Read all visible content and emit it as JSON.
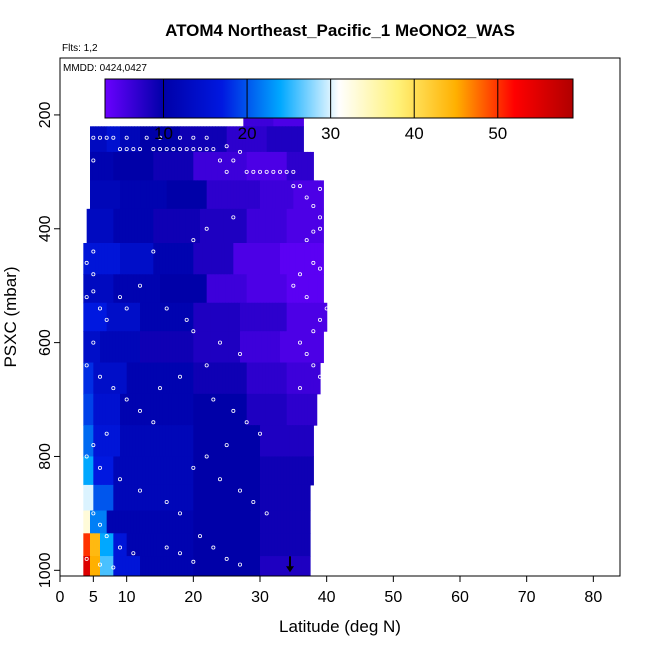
{
  "chart_data": {
    "type": "heatmap",
    "title": "ATOM4 Northeast_Pacific_1 MeONO2_WAS",
    "flights_label": "Flts: 1,2",
    "dates_label": "MMDD: 0424,0427",
    "xlabel": "Latitude (deg N)",
    "ylabel": "PSXC (mbar)",
    "xlim": [
      0,
      84
    ],
    "ylim": [
      1010,
      100
    ],
    "y_reversed": true,
    "x_ticks": [
      0,
      5,
      10,
      20,
      30,
      40,
      50,
      60,
      70,
      80
    ],
    "y_ticks": [
      200,
      400,
      600,
      800,
      1000
    ],
    "colorbar": {
      "range": [
        3,
        59
      ],
      "ticks": [
        10,
        20,
        30,
        40,
        50
      ],
      "colors": [
        "#6a00ff",
        "#0000a8",
        "#0018e0",
        "#00a8ff",
        "#ffffff",
        "#fff27a",
        "#ffb000",
        "#ff0000",
        "#b00000"
      ]
    },
    "rows": [
      {
        "p_top": 170,
        "p_bot": 220,
        "cells": [
          [
            27.5,
            32,
            6
          ],
          [
            32,
            36.5,
            5
          ]
        ]
      },
      {
        "p_top": 220,
        "p_bot": 265,
        "cells": [
          [
            4.5,
            7,
            13
          ],
          [
            7,
            9,
            15
          ],
          [
            9,
            12,
            12
          ],
          [
            12,
            18,
            10
          ],
          [
            18,
            25,
            9
          ],
          [
            25,
            31,
            7
          ],
          [
            31,
            36.5,
            8
          ]
        ]
      },
      {
        "p_top": 265,
        "p_bot": 315,
        "cells": [
          [
            4.5,
            8,
            11
          ],
          [
            8,
            14,
            10
          ],
          [
            14,
            20,
            9
          ],
          [
            20,
            28,
            6
          ],
          [
            28,
            34,
            5
          ],
          [
            34,
            38,
            7
          ]
        ]
      },
      {
        "p_top": 315,
        "p_bot": 365,
        "cells": [
          [
            4.5,
            9,
            12
          ],
          [
            9,
            16,
            11
          ],
          [
            16,
            22,
            10
          ],
          [
            22,
            30,
            7
          ],
          [
            30,
            35,
            6
          ],
          [
            35,
            39.5,
            5
          ]
        ]
      },
      {
        "p_top": 365,
        "p_bot": 425,
        "cells": [
          [
            4,
            8,
            13
          ],
          [
            8,
            14,
            11
          ],
          [
            14,
            21,
            9
          ],
          [
            21,
            28,
            8
          ],
          [
            28,
            34,
            6
          ],
          [
            34,
            39.5,
            5
          ]
        ]
      },
      {
        "p_top": 425,
        "p_bot": 480,
        "cells": [
          [
            3.5,
            9,
            16
          ],
          [
            9,
            14,
            14
          ],
          [
            14,
            20,
            11
          ],
          [
            20,
            26,
            8
          ],
          [
            26,
            33,
            5
          ],
          [
            33,
            39.5,
            4
          ]
        ]
      },
      {
        "p_top": 480,
        "p_bot": 530,
        "cells": [
          [
            3.5,
            8,
            13
          ],
          [
            8,
            15,
            11
          ],
          [
            15,
            22,
            10
          ],
          [
            22,
            28,
            6
          ],
          [
            28,
            34,
            5
          ],
          [
            34,
            39.5,
            4
          ]
        ]
      },
      {
        "p_top": 530,
        "p_bot": 580,
        "cells": [
          [
            3.5,
            7,
            17
          ],
          [
            7,
            12,
            14
          ],
          [
            12,
            20,
            11
          ],
          [
            20,
            27,
            8
          ],
          [
            27,
            34,
            7
          ],
          [
            34,
            40,
            5
          ]
        ]
      },
      {
        "p_top": 580,
        "p_bot": 635,
        "cells": [
          [
            3.5,
            6,
            14
          ],
          [
            6,
            12,
            12
          ],
          [
            12,
            20,
            9
          ],
          [
            20,
            27,
            8
          ],
          [
            27,
            33,
            6
          ],
          [
            33,
            39.5,
            5
          ]
        ]
      },
      {
        "p_top": 635,
        "p_bot": 690,
        "cells": [
          [
            3.5,
            5,
            18
          ],
          [
            5,
            10,
            14
          ],
          [
            10,
            20,
            11
          ],
          [
            20,
            28,
            9
          ],
          [
            28,
            34,
            7
          ],
          [
            34,
            39,
            6
          ]
        ]
      },
      {
        "p_top": 690,
        "p_bot": 745,
        "cells": [
          [
            3.5,
            5,
            19
          ],
          [
            5,
            9,
            15
          ],
          [
            9,
            20,
            11
          ],
          [
            20,
            28,
            10
          ],
          [
            28,
            34,
            8
          ],
          [
            34,
            38.5,
            7
          ]
        ]
      },
      {
        "p_top": 745,
        "p_bot": 800,
        "cells": [
          [
            3.5,
            5,
            21
          ],
          [
            5,
            9,
            16
          ],
          [
            9,
            20,
            12
          ],
          [
            20,
            30,
            10
          ],
          [
            30,
            38,
            8
          ]
        ]
      },
      {
        "p_top": 800,
        "p_bot": 850,
        "cells": [
          [
            3.5,
            5,
            24
          ],
          [
            5,
            8,
            17
          ],
          [
            8,
            20,
            12
          ],
          [
            20,
            30,
            10
          ],
          [
            30,
            38,
            9
          ]
        ]
      },
      {
        "p_top": 850,
        "p_bot": 895,
        "cells": [
          [
            3.5,
            5,
            30
          ],
          [
            5,
            8,
            20
          ],
          [
            8,
            20,
            12
          ],
          [
            20,
            30,
            10
          ],
          [
            30,
            37.5,
            9
          ]
        ]
      },
      {
        "p_top": 895,
        "p_bot": 935,
        "cells": [
          [
            3.5,
            4.5,
            33
          ],
          [
            4.5,
            7,
            22
          ],
          [
            7,
            20,
            11
          ],
          [
            20,
            30,
            10
          ],
          [
            30,
            37.5,
            9
          ]
        ]
      },
      {
        "p_top": 935,
        "p_bot": 975,
        "cells": [
          [
            3.5,
            4.5,
            50
          ],
          [
            4.5,
            6,
            44
          ],
          [
            6,
            8,
            24
          ],
          [
            8,
            10,
            16
          ],
          [
            10,
            20,
            11
          ],
          [
            20,
            30,
            10
          ],
          [
            30,
            37.5,
            9
          ]
        ]
      },
      {
        "p_top": 975,
        "p_bot": 1010,
        "cells": [
          [
            3.5,
            4.5,
            55
          ],
          [
            4.5,
            6,
            45
          ],
          [
            6,
            8,
            26
          ],
          [
            8,
            12,
            16
          ],
          [
            12,
            20,
            11
          ],
          [
            20,
            30,
            10
          ],
          [
            30,
            37.5,
            8
          ]
        ]
      }
    ],
    "points": [
      [
        28,
        200
      ],
      [
        29,
        200
      ],
      [
        30,
        200
      ],
      [
        31,
        200
      ],
      [
        32,
        200
      ],
      [
        33,
        200
      ],
      [
        34,
        200
      ],
      [
        26,
        210
      ],
      [
        5,
        240
      ],
      [
        6,
        240
      ],
      [
        7,
        240
      ],
      [
        8,
        240
      ],
      [
        10,
        240
      ],
      [
        13,
        240
      ],
      [
        15,
        240
      ],
      [
        18,
        240
      ],
      [
        20,
        240
      ],
      [
        22,
        240
      ],
      [
        9,
        260
      ],
      [
        10,
        260
      ],
      [
        11,
        260
      ],
      [
        12,
        260
      ],
      [
        14,
        260
      ],
      [
        15,
        260
      ],
      [
        16,
        260
      ],
      [
        17,
        260
      ],
      [
        18,
        260
      ],
      [
        19,
        260
      ],
      [
        20,
        260
      ],
      [
        21,
        260
      ],
      [
        22,
        260
      ],
      [
        23,
        260
      ],
      [
        25,
        255
      ],
      [
        27,
        265
      ],
      [
        24,
        280
      ],
      [
        26,
        280
      ],
      [
        28,
        300
      ],
      [
        29,
        300
      ],
      [
        30,
        300
      ],
      [
        31,
        300
      ],
      [
        32,
        300
      ],
      [
        33,
        300
      ],
      [
        34,
        300
      ],
      [
        35,
        300
      ],
      [
        25,
        300
      ],
      [
        5,
        280
      ],
      [
        35,
        325
      ],
      [
        36,
        325
      ],
      [
        39,
        330
      ],
      [
        40,
        330
      ],
      [
        37,
        345
      ],
      [
        40,
        350
      ],
      [
        38,
        360
      ],
      [
        39,
        380
      ],
      [
        26,
        380
      ],
      [
        22,
        400
      ],
      [
        20,
        420
      ],
      [
        14,
        440
      ],
      [
        39,
        400
      ],
      [
        38,
        405
      ],
      [
        40,
        420
      ],
      [
        37,
        420
      ],
      [
        40,
        440
      ],
      [
        38,
        460
      ],
      [
        39,
        470
      ],
      [
        36,
        480
      ],
      [
        35,
        500
      ],
      [
        37,
        520
      ],
      [
        40,
        540
      ],
      [
        39,
        560
      ],
      [
        38,
        580
      ],
      [
        36,
        600
      ],
      [
        37,
        620
      ],
      [
        38,
        640
      ],
      [
        39,
        660
      ],
      [
        36,
        680
      ],
      [
        5,
        440
      ],
      [
        4,
        460
      ],
      [
        5,
        480
      ],
      [
        5,
        510
      ],
      [
        6,
        540
      ],
      [
        7,
        560
      ],
      [
        10,
        540
      ],
      [
        16,
        540
      ],
      [
        19,
        560
      ],
      [
        12,
        500
      ],
      [
        9,
        520
      ],
      [
        4,
        520
      ],
      [
        5,
        600
      ],
      [
        4,
        640
      ],
      [
        6,
        660
      ],
      [
        8,
        680
      ],
      [
        10,
        700
      ],
      [
        12,
        720
      ],
      [
        14,
        740
      ],
      [
        7,
        760
      ],
      [
        5,
        780
      ],
      [
        4,
        800
      ],
      [
        6,
        820
      ],
      [
        9,
        840
      ],
      [
        12,
        860
      ],
      [
        16,
        880
      ],
      [
        18,
        900
      ],
      [
        5,
        900
      ],
      [
        6,
        920
      ],
      [
        7,
        940
      ],
      [
        9,
        960
      ],
      [
        11,
        970
      ],
      [
        4,
        980
      ],
      [
        6,
        990
      ],
      [
        8,
        995
      ],
      [
        20,
        580
      ],
      [
        24,
        600
      ],
      [
        27,
        620
      ],
      [
        22,
        640
      ],
      [
        18,
        660
      ],
      [
        15,
        680
      ],
      [
        23,
        700
      ],
      [
        26,
        720
      ],
      [
        28,
        740
      ],
      [
        30,
        760
      ],
      [
        25,
        780
      ],
      [
        22,
        800
      ],
      [
        20,
        820
      ],
      [
        24,
        840
      ],
      [
        27,
        860
      ],
      [
        29,
        880
      ],
      [
        31,
        900
      ],
      [
        21,
        940
      ],
      [
        23,
        960
      ],
      [
        25,
        980
      ],
      [
        27,
        990
      ],
      [
        20,
        985
      ],
      [
        18,
        970
      ],
      [
        16,
        960
      ]
    ],
    "surface_marker": {
      "x": 34.5,
      "p": 1000
    }
  }
}
